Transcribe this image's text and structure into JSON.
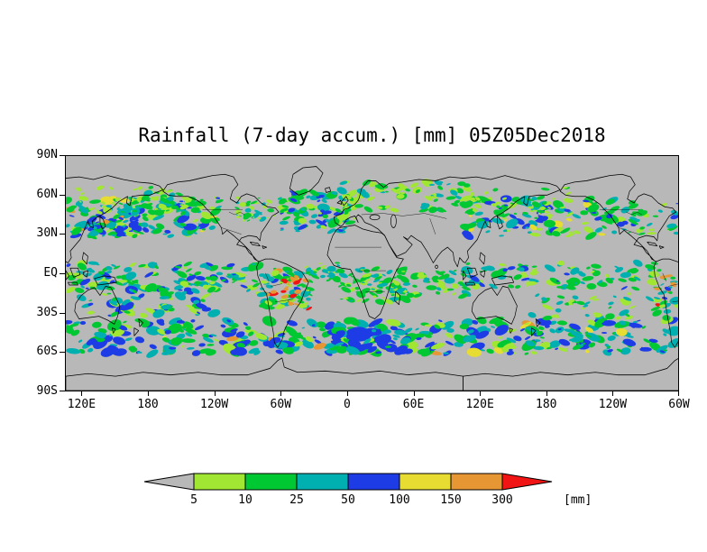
{
  "chart_data": {
    "type": "heatmap",
    "title": "Rainfall (7-day accum.) [mm] 05Z05Dec2018",
    "variable": "Rainfall",
    "accumulation": "7-day accum.",
    "units": "mm",
    "datetime_label": "05Z05Dec2018",
    "map": {
      "background_color": "#b8b8b8",
      "coastline_color": "#000000",
      "lon_span_deg": 555,
      "lat_ticks": [
        {
          "label": "90N",
          "f": 0
        },
        {
          "label": "60N",
          "f": 0.1667
        },
        {
          "label": "30N",
          "f": 0.3333
        },
        {
          "label": "EQ",
          "f": 0.5
        },
        {
          "label": "30S",
          "f": 0.6667
        },
        {
          "label": "60S",
          "f": 0.8333
        },
        {
          "label": "90S",
          "f": 1
        }
      ],
      "lon_ticks": [
        {
          "label": "120E",
          "f": 0.027
        },
        {
          "label": "180",
          "f": 0.1351
        },
        {
          "label": "120W",
          "f": 0.2432
        },
        {
          "label": "60W",
          "f": 0.3514
        },
        {
          "label": "0",
          "f": 0.4595
        },
        {
          "label": "60E",
          "f": 0.5676
        },
        {
          "label": "120E",
          "f": 0.6757
        },
        {
          "label": "180",
          "f": 0.7838
        },
        {
          "label": "120W",
          "f": 0.8919
        },
        {
          "label": "60W",
          "f": 1
        }
      ]
    },
    "colorbar": {
      "levels": [
        5,
        10,
        25,
        50,
        100,
        150,
        300
      ],
      "unit_label": "[mm]",
      "segment_colors": [
        "#b8b8b8",
        "#a0e632",
        "#00c832",
        "#00b0b0",
        "#1e3ce6",
        "#e6dc32",
        "#e69632",
        "#f01414"
      ]
    },
    "precip_palette": {
      "lg": "#a0e632",
      "gr": "#00c832",
      "tl": "#00b0b0",
      "bl": "#1e3ce6",
      "yw": "#e6dc32",
      "or": "#e69632",
      "rd": "#f01414"
    },
    "precip_bands": [
      {
        "x": [
          0,
          140
        ],
        "lat": [
          28,
          58
        ],
        "n": 150,
        "s": [
          1.5,
          6
        ],
        "c": {
          "gr": 0.3,
          "lg": 0.18,
          "tl": 0.28,
          "bl": 0.2,
          "yw": 0.03,
          "or": 0.01
        }
      },
      {
        "x": [
          360,
          505
        ],
        "lat": [
          28,
          58
        ],
        "n": 130,
        "s": [
          1.5,
          6
        ],
        "c": {
          "gr": 0.3,
          "lg": 0.18,
          "tl": 0.28,
          "bl": 0.2,
          "yw": 0.03,
          "or": 0.01
        }
      },
      {
        "x": [
          195,
          262
        ],
        "lat": [
          32,
          62
        ],
        "n": 90,
        "s": [
          1.5,
          6
        ],
        "c": {
          "gr": 0.3,
          "lg": 0.2,
          "tl": 0.3,
          "bl": 0.2
        }
      },
      {
        "x": [
          250,
          365
        ],
        "lat": [
          48,
          70
        ],
        "n": 80,
        "s": [
          1.5,
          5
        ],
        "c": {
          "lg": 0.35,
          "gr": 0.4,
          "tl": 0.25
        }
      },
      {
        "x": [
          0,
          95
        ],
        "lat": [
          44,
          66
        ],
        "n": 45,
        "s": [
          1,
          4
        ],
        "c": {
          "lg": 0.5,
          "gr": 0.5
        }
      },
      {
        "x": [
          360,
          460
        ],
        "lat": [
          44,
          66
        ],
        "n": 40,
        "s": [
          1,
          4
        ],
        "c": {
          "lg": 0.5,
          "gr": 0.5
        }
      },
      {
        "x": [
          0,
          175
        ],
        "lat": [
          -14,
          8
        ],
        "n": 120,
        "s": [
          1.5,
          5.5
        ],
        "c": {
          "gr": 0.35,
          "tl": 0.3,
          "bl": 0.15,
          "lg": 0.2
        }
      },
      {
        "x": [
          360,
          535
        ],
        "lat": [
          -12,
          8
        ],
        "n": 100,
        "s": [
          1.5,
          5.5
        ],
        "c": {
          "gr": 0.35,
          "tl": 0.3,
          "bl": 0.15,
          "lg": 0.2
        }
      },
      {
        "x": [
          10,
          135
        ],
        "lat": [
          -33,
          -6
        ],
        "n": 95,
        "s": [
          1.5,
          6
        ],
        "c": {
          "gr": 0.3,
          "tl": 0.3,
          "bl": 0.2,
          "lg": 0.2
        }
      },
      {
        "x": [
          176,
          222
        ],
        "lat": [
          -28,
          4
        ],
        "n": 85,
        "s": [
          1.5,
          5
        ],
        "c": {
          "gr": 0.3,
          "tl": 0.25,
          "bl": 0.15,
          "lg": 0.2,
          "or": 0.07,
          "rd": 0.03
        }
      },
      {
        "x": [
          188,
          212
        ],
        "lat": [
          -25,
          -3
        ],
        "n": 18,
        "s": [
          1.2,
          3.5
        ],
        "c": {
          "or": 0.6,
          "rd": 0.25,
          "yw": 0.15
        }
      },
      {
        "x": [
          535,
          555
        ],
        "lat": [
          -25,
          3
        ],
        "n": 26,
        "s": [
          1.5,
          4.5
        ],
        "c": {
          "gr": 0.3,
          "tl": 0.25,
          "bl": 0.1,
          "lg": 0.15,
          "or": 0.15,
          "rd": 0.05
        }
      },
      {
        "x": [
          248,
          308
        ],
        "lat": [
          -22,
          5
        ],
        "n": 75,
        "s": [
          1.5,
          5
        ],
        "c": {
          "gr": 0.45,
          "lg": 0.3,
          "tl": 0.2,
          "bl": 0.05
        }
      },
      {
        "x": [
          295,
          365
        ],
        "lat": [
          -18,
          3
        ],
        "n": 60,
        "s": [
          1.5,
          5
        ],
        "c": {
          "gr": 0.4,
          "tl": 0.35,
          "lg": 0.25
        }
      },
      {
        "x": [
          0,
          555
        ],
        "lat": [
          -62,
          -36
        ],
        "n": 380,
        "s": [
          1.5,
          7
        ],
        "c": {
          "gr": 0.28,
          "tl": 0.3,
          "bl": 0.25,
          "lg": 0.12,
          "yw": 0.03,
          "or": 0.02
        }
      },
      {
        "x": [
          240,
          310
        ],
        "lat": [
          -60,
          -44
        ],
        "n": 65,
        "s": [
          2,
          7
        ],
        "c": {
          "bl": 0.55,
          "tl": 0.3,
          "gr": 0.15
        }
      },
      {
        "x": [
          20,
          65
        ],
        "lat": [
          28,
          46
        ],
        "n": 50,
        "s": [
          1.5,
          5
        ],
        "c": {
          "tl": 0.35,
          "bl": 0.3,
          "gr": 0.25,
          "yw": 0.05,
          "or": 0.05
        }
      },
      {
        "x": [
          60,
          115
        ],
        "lat": [
          46,
          62
        ],
        "n": 45,
        "s": [
          1.5,
          5
        ],
        "c": {
          "gr": 0.4,
          "tl": 0.3,
          "lg": 0.3
        }
      },
      {
        "x": [
          218,
          252
        ],
        "lat": [
          -6,
          8
        ],
        "n": 32,
        "s": [
          1.5,
          4.5
        ],
        "c": {
          "gr": 0.5,
          "tl": 0.3,
          "lg": 0.2
        }
      },
      {
        "x": [
          420,
          555
        ],
        "lat": [
          -35,
          -15
        ],
        "n": 50,
        "s": [
          1.5,
          5
        ],
        "c": {
          "gr": 0.4,
          "tl": 0.3,
          "lg": 0.3
        }
      },
      {
        "x": [
          155,
          200
        ],
        "lat": [
          40,
          58
        ],
        "n": 38,
        "s": [
          1,
          4
        ],
        "c": {
          "lg": 0.4,
          "gr": 0.4,
          "tl": 0.2
        }
      },
      {
        "x": [
          505,
          555
        ],
        "lat": [
          30,
          55
        ],
        "n": 32,
        "s": [
          1.5,
          5
        ],
        "c": {
          "gr": 0.35,
          "tl": 0.3,
          "lg": 0.25,
          "bl": 0.1
        }
      }
    ]
  }
}
